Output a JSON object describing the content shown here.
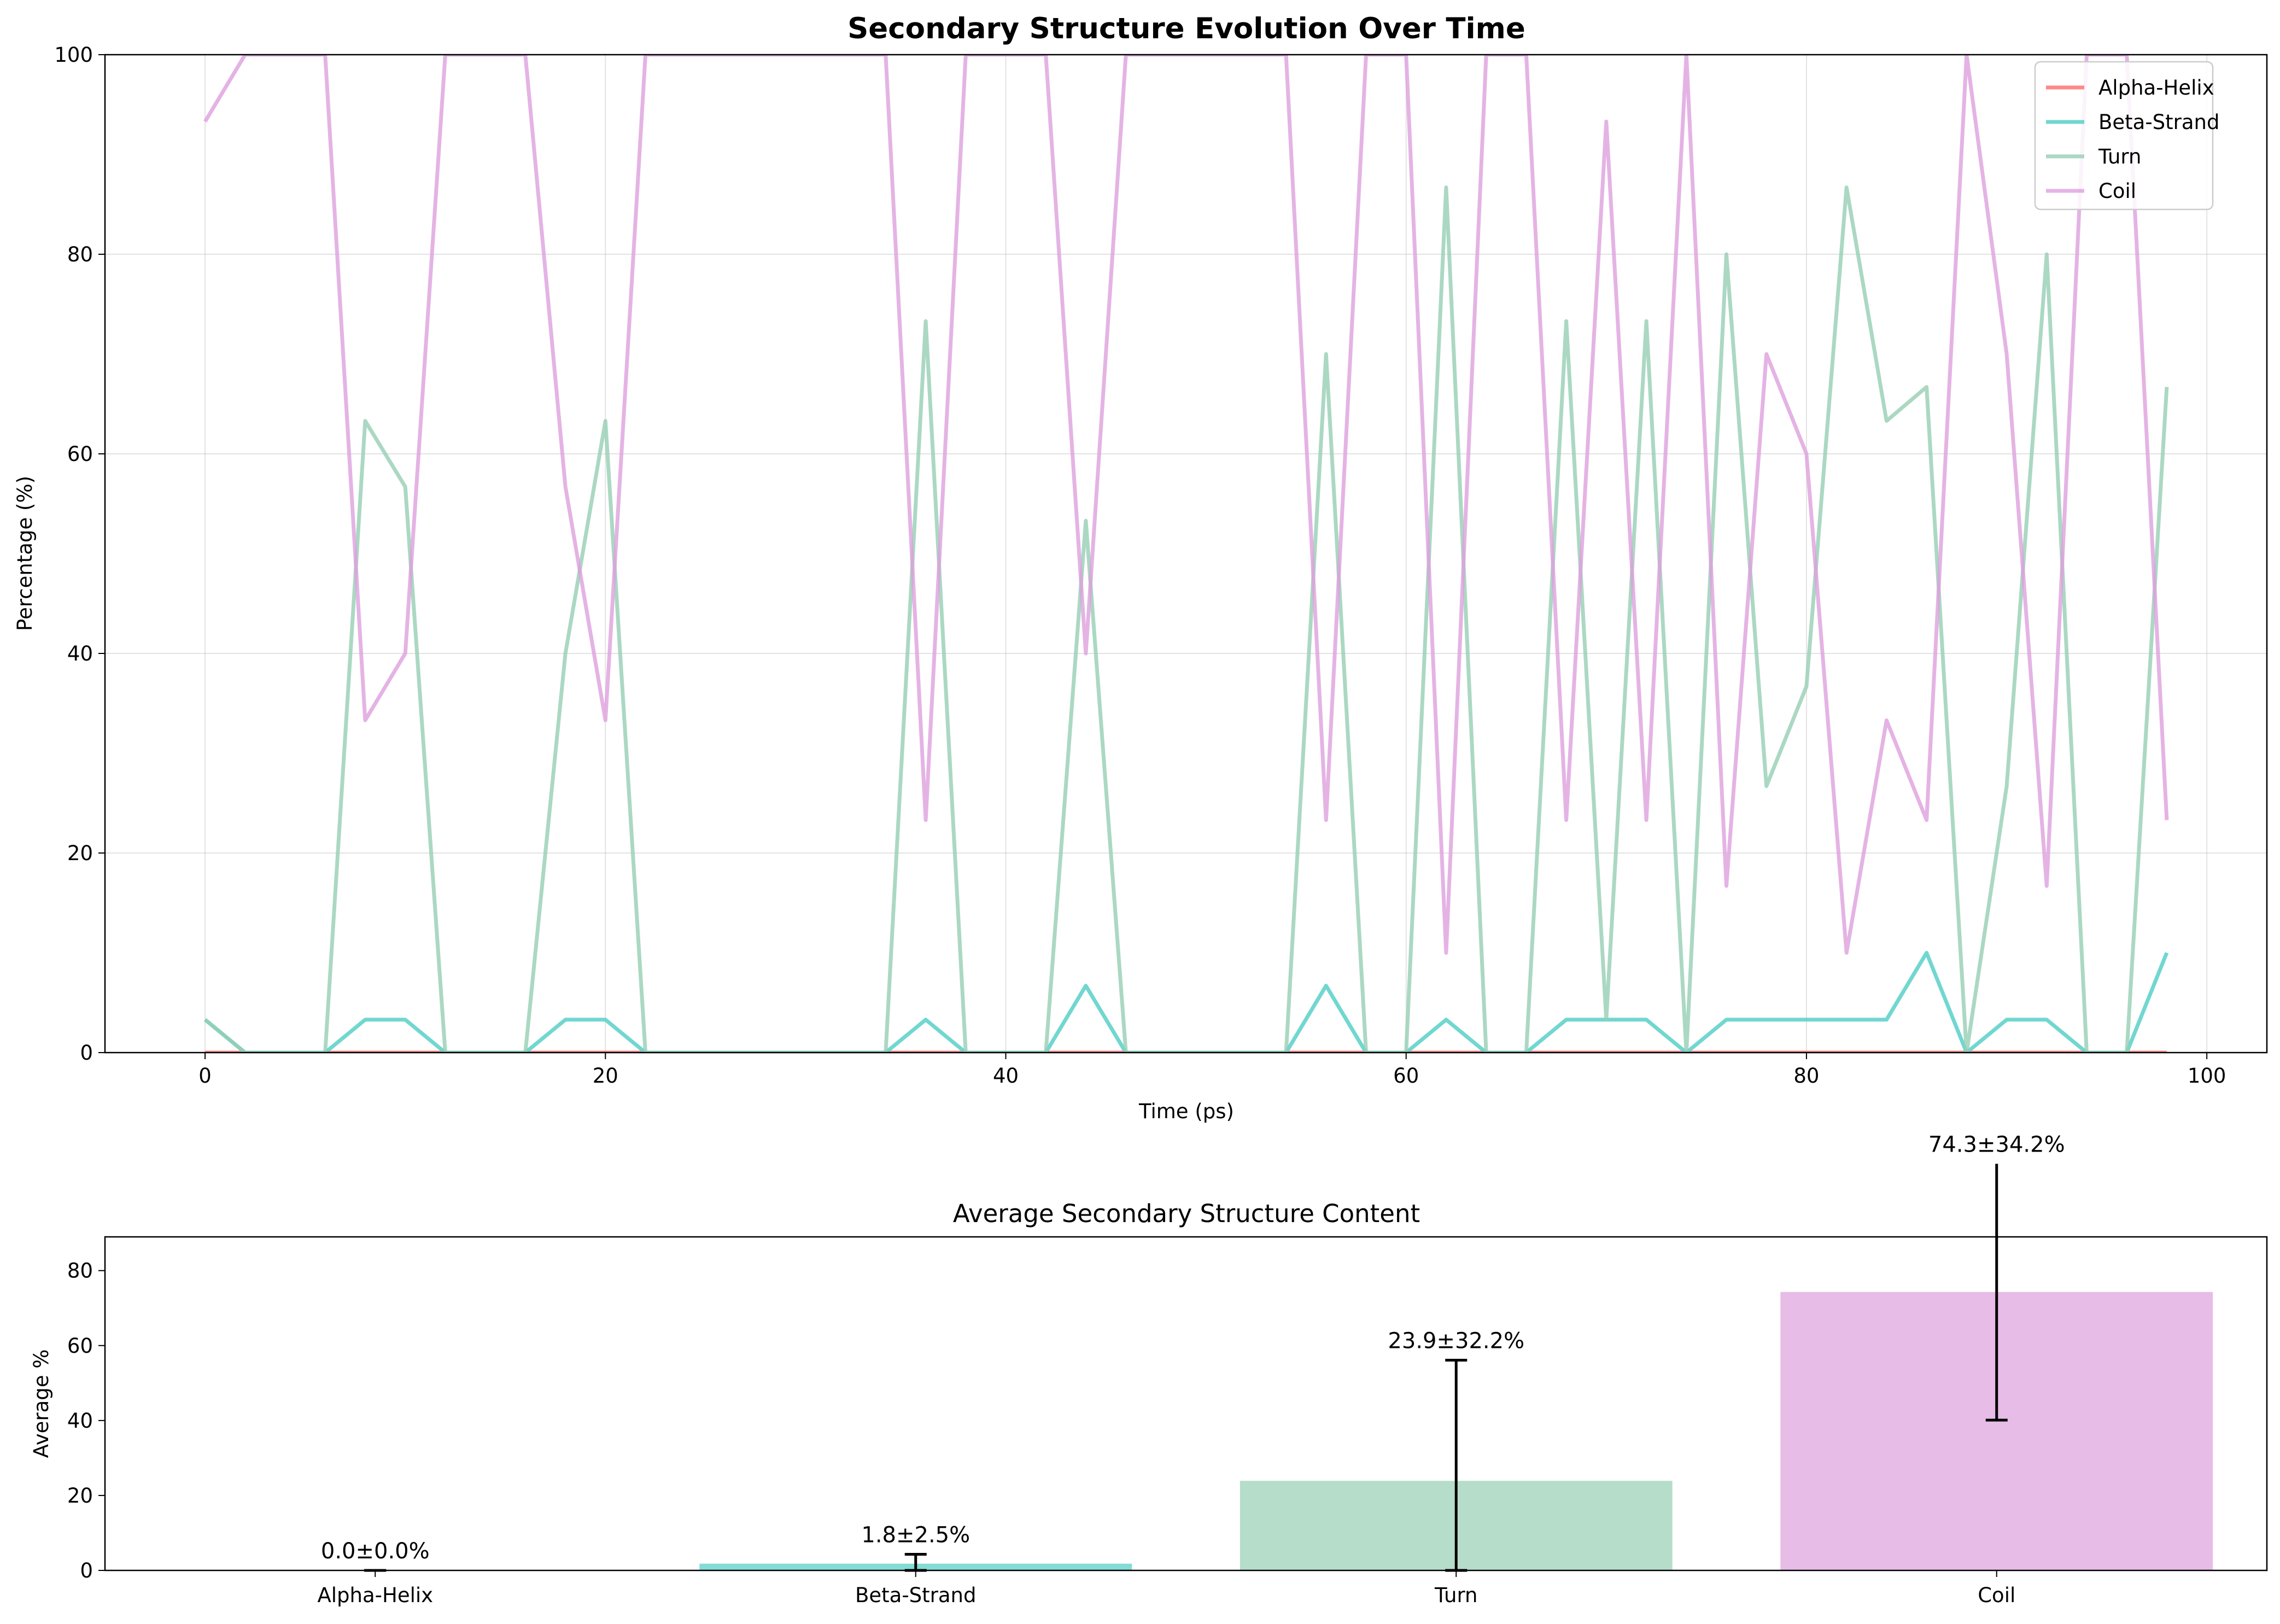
{
  "chart_data": [
    {
      "type": "line",
      "title": "Secondary Structure Evolution Over Time",
      "xlabel": "Time (ps)",
      "ylabel": "Percentage (%)",
      "xlim": [
        -5,
        103
      ],
      "ylim": [
        0,
        100
      ],
      "xticks": [
        0,
        20,
        40,
        60,
        80,
        100
      ],
      "yticks": [
        0,
        20,
        40,
        60,
        80,
        100
      ],
      "grid": true,
      "legend_position": "top-right",
      "x": [
        0,
        2,
        4,
        6,
        8,
        10,
        12,
        14,
        16,
        18,
        20,
        22,
        24,
        26,
        28,
        30,
        32,
        34,
        36,
        38,
        40,
        42,
        44,
        46,
        48,
        50,
        52,
        54,
        56,
        58,
        60,
        62,
        64,
        66,
        68,
        70,
        72,
        74,
        76,
        78,
        80,
        82,
        84,
        86,
        88,
        90,
        92,
        94,
        96,
        98
      ],
      "series": [
        {
          "name": "Alpha-Helix",
          "color": "#ff6b6b",
          "values": [
            0,
            0,
            0,
            0,
            0,
            0,
            0,
            0,
            0,
            0,
            0,
            0,
            0,
            0,
            0,
            0,
            0,
            0,
            0,
            0,
            0,
            0,
            0,
            0,
            0,
            0,
            0,
            0,
            0,
            0,
            0,
            0,
            0,
            0,
            0,
            0,
            0,
            0,
            0,
            0,
            0,
            0,
            0,
            0,
            0,
            0,
            0,
            0,
            0,
            0
          ]
        },
        {
          "name": "Beta-Strand",
          "color": "#4ecdc4",
          "values": [
            3.3,
            0,
            0,
            0,
            3.3,
            3.3,
            0,
            0,
            0,
            3.3,
            3.3,
            0,
            0,
            0,
            0,
            0,
            0,
            0,
            3.3,
            0,
            0,
            0,
            6.7,
            0,
            0,
            0,
            0,
            0,
            6.7,
            0,
            0,
            3.3,
            0,
            0,
            3.3,
            3.3,
            3.3,
            0,
            3.3,
            3.3,
            3.3,
            3.3,
            3.3,
            10,
            0,
            3.3,
            3.3,
            0,
            0,
            10
          ]
        },
        {
          "name": "Turn",
          "color": "#96ceb4",
          "values": [
            3.3,
            0,
            0,
            0,
            63.3,
            56.7,
            0,
            0,
            0,
            40,
            63.3,
            0,
            0,
            0,
            0,
            0,
            0,
            0,
            73.3,
            0,
            0,
            0,
            53.3,
            0,
            0,
            0,
            0,
            0,
            70,
            0,
            0,
            86.7,
            0,
            0,
            73.3,
            3.3,
            73.3,
            0,
            80,
            26.7,
            36.7,
            86.7,
            63.3,
            66.7,
            0,
            26.7,
            80,
            0,
            0,
            66.7
          ]
        },
        {
          "name": "Coil",
          "color": "#dda0dd",
          "values": [
            93.3,
            100,
            100,
            100,
            33.3,
            40,
            100,
            100,
            100,
            56.7,
            33.3,
            100,
            100,
            100,
            100,
            100,
            100,
            100,
            23.3,
            100,
            100,
            100,
            40,
            100,
            100,
            100,
            100,
            100,
            23.3,
            100,
            100,
            10,
            100,
            100,
            23.3,
            93.3,
            23.3,
            100,
            16.7,
            70,
            60,
            10,
            33.3,
            23.3,
            100,
            70,
            16.7,
            100,
            100,
            23.3
          ]
        }
      ]
    },
    {
      "type": "bar",
      "title": "Average Secondary Structure Content",
      "xlabel": "",
      "ylabel": "Average %",
      "ylim": [
        0,
        89
      ],
      "yticks": [
        0,
        20,
        40,
        60,
        80
      ],
      "grid": false,
      "categories": [
        "Alpha-Helix",
        "Beta-Strand",
        "Turn",
        "Coil"
      ],
      "values": [
        0.0,
        1.8,
        23.9,
        74.3
      ],
      "errors": [
        0.0,
        2.5,
        32.2,
        34.2
      ],
      "labels": [
        "0.0±0.0%",
        "1.8±2.5%",
        "23.9±32.2%",
        "74.3±34.2%"
      ],
      "colors": [
        "#ff6b6b",
        "#4ecdc4",
        "#96ceb4",
        "#dda0dd"
      ]
    }
  ]
}
